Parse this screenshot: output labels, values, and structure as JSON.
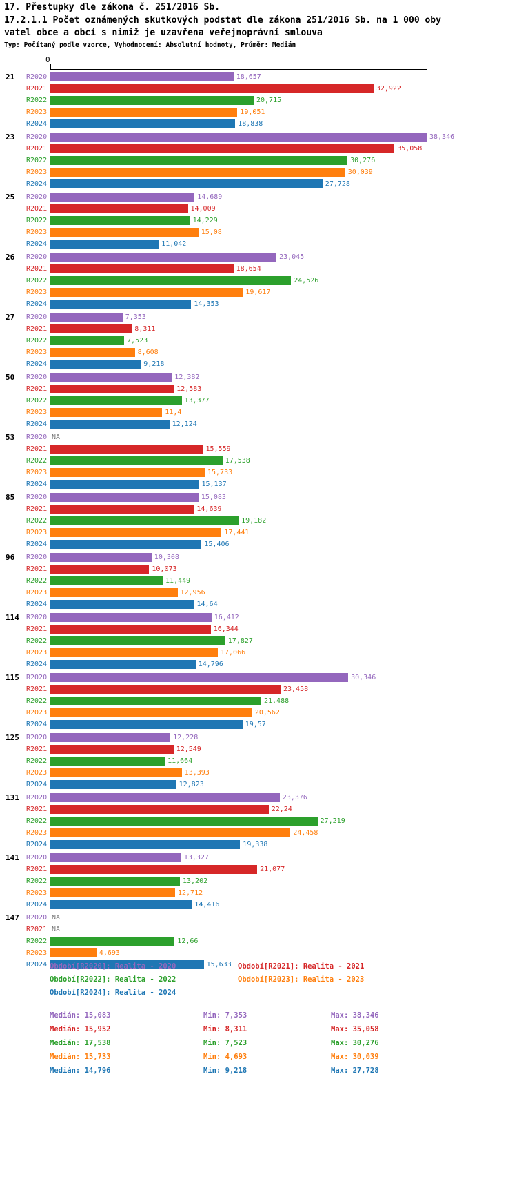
{
  "header": {
    "title": "17. Přestupky dle zákona č. 251/2016 Sb.",
    "subtitle_line1": "17.2.1.1 Počet oznámených skutkových podstat dle zákona 251/2016 Sb. na 1 000 oby",
    "subtitle_line2": "vatel obce a obcí s nimiž je uzavřena veřejnoprávní smlouva",
    "meta": "Typ: Počítaný podle vzorce, Vyhodnocení: Absolutní hodnoty, Průměr: Medián"
  },
  "axis": {
    "zero_label": "0"
  },
  "series": [
    {
      "id": "R2020",
      "color": "#9467bd",
      "legend": "Období[R2020]: Realita - 2020",
      "median": 15.083,
      "stats": {
        "median": "Medián: 15,083",
        "min": "Min: 7,353",
        "max": "Max: 38,346"
      }
    },
    {
      "id": "R2021",
      "color": "#d62728",
      "legend": "Období[R2021]: Realita - 2021",
      "median": 15.952,
      "stats": {
        "median": "Medián: 15,952",
        "min": "Min: 8,311",
        "max": "Max: 35,058"
      }
    },
    {
      "id": "R2022",
      "color": "#2ca02c",
      "legend": "Období[R2022]: Realita - 2022",
      "median": 17.538,
      "stats": {
        "median": "Medián: 17,538",
        "min": "Min: 7,523",
        "max": "Max: 30,276"
      }
    },
    {
      "id": "R2023",
      "color": "#ff7f0e",
      "legend": "Období[R2023]: Realita - 2023",
      "median": 15.733,
      "stats": {
        "median": "Medián: 15,733",
        "min": "Min: 4,693",
        "max": "Max: 30,039"
      }
    },
    {
      "id": "R2024",
      "color": "#1f77b4",
      "legend": "Období[R2024]: Realita - 2024",
      "median": 14.796,
      "stats": {
        "median": "Medián: 14,796",
        "min": "Min: 9,218",
        "max": "Max: 27,728"
      }
    }
  ],
  "chart_data": {
    "type": "bar",
    "orientation": "horizontal",
    "value_axis": {
      "min": 0,
      "max": 38.346
    },
    "series_names": [
      "R2020",
      "R2021",
      "R2022",
      "R2023",
      "R2024"
    ],
    "groups": [
      {
        "label": "21",
        "rows": [
          {
            "series": "R2020",
            "value": 18.657,
            "display": "18,657"
          },
          {
            "series": "R2021",
            "value": 32.922,
            "display": "32,922"
          },
          {
            "series": "R2022",
            "value": 20.715,
            "display": "20,715"
          },
          {
            "series": "R2023",
            "value": 19.051,
            "display": "19,051"
          },
          {
            "series": "R2024",
            "value": 18.838,
            "display": "18,838"
          }
        ]
      },
      {
        "label": "23",
        "rows": [
          {
            "series": "R2020",
            "value": 38.346,
            "display": "38,346"
          },
          {
            "series": "R2021",
            "value": 35.058,
            "display": "35,058"
          },
          {
            "series": "R2022",
            "value": 30.276,
            "display": "30,276"
          },
          {
            "series": "R2023",
            "value": 30.039,
            "display": "30,039"
          },
          {
            "series": "R2024",
            "value": 27.728,
            "display": "27,728"
          }
        ]
      },
      {
        "label": "25",
        "rows": [
          {
            "series": "R2020",
            "value": 14.689,
            "display": "14,689"
          },
          {
            "series": "R2021",
            "value": 14.009,
            "display": "14,009"
          },
          {
            "series": "R2022",
            "value": 14.229,
            "display": "14,229"
          },
          {
            "series": "R2023",
            "value": 15.08,
            "display": "15,08"
          },
          {
            "series": "R2024",
            "value": 11.042,
            "display": "11,042"
          }
        ]
      },
      {
        "label": "26",
        "rows": [
          {
            "series": "R2020",
            "value": 23.045,
            "display": "23,045"
          },
          {
            "series": "R2021",
            "value": 18.654,
            "display": "18,654"
          },
          {
            "series": "R2022",
            "value": 24.526,
            "display": "24,526"
          },
          {
            "series": "R2023",
            "value": 19.617,
            "display": "19,617"
          },
          {
            "series": "R2024",
            "value": 14.353,
            "display": "14,353"
          }
        ]
      },
      {
        "label": "27",
        "rows": [
          {
            "series": "R2020",
            "value": 7.353,
            "display": "7,353"
          },
          {
            "series": "R2021",
            "value": 8.311,
            "display": "8,311"
          },
          {
            "series": "R2022",
            "value": 7.523,
            "display": "7,523"
          },
          {
            "series": "R2023",
            "value": 8.608,
            "display": "8,608"
          },
          {
            "series": "R2024",
            "value": 9.218,
            "display": "9,218"
          }
        ]
      },
      {
        "label": "50",
        "rows": [
          {
            "series": "R2020",
            "value": 12.382,
            "display": "12,382"
          },
          {
            "series": "R2021",
            "value": 12.583,
            "display": "12,583"
          },
          {
            "series": "R2022",
            "value": 13.377,
            "display": "13,377"
          },
          {
            "series": "R2023",
            "value": 11.4,
            "display": "11,4"
          },
          {
            "series": "R2024",
            "value": 12.124,
            "display": "12,124"
          }
        ]
      },
      {
        "label": "53",
        "rows": [
          {
            "series": "R2020",
            "value": null,
            "display": "NA"
          },
          {
            "series": "R2021",
            "value": 15.559,
            "display": "15,559"
          },
          {
            "series": "R2022",
            "value": 17.538,
            "display": "17,538"
          },
          {
            "series": "R2023",
            "value": 15.733,
            "display": "15,733"
          },
          {
            "series": "R2024",
            "value": 15.137,
            "display": "15,137"
          }
        ]
      },
      {
        "label": "85",
        "rows": [
          {
            "series": "R2020",
            "value": 15.083,
            "display": "15,083"
          },
          {
            "series": "R2021",
            "value": 14.639,
            "display": "14,639"
          },
          {
            "series": "R2022",
            "value": 19.182,
            "display": "19,182"
          },
          {
            "series": "R2023",
            "value": 17.441,
            "display": "17,441"
          },
          {
            "series": "R2024",
            "value": 15.406,
            "display": "15,406"
          }
        ]
      },
      {
        "label": "96",
        "rows": [
          {
            "series": "R2020",
            "value": 10.308,
            "display": "10,308"
          },
          {
            "series": "R2021",
            "value": 10.073,
            "display": "10,073"
          },
          {
            "series": "R2022",
            "value": 11.449,
            "display": "11,449"
          },
          {
            "series": "R2023",
            "value": 12.956,
            "display": "12,956"
          },
          {
            "series": "R2024",
            "value": 14.64,
            "display": "14,64"
          }
        ]
      },
      {
        "label": "114",
        "rows": [
          {
            "series": "R2020",
            "value": 16.412,
            "display": "16,412"
          },
          {
            "series": "R2021",
            "value": 16.344,
            "display": "16,344"
          },
          {
            "series": "R2022",
            "value": 17.827,
            "display": "17,827"
          },
          {
            "series": "R2023",
            "value": 17.066,
            "display": "17,066"
          },
          {
            "series": "R2024",
            "value": 14.796,
            "display": "14,796"
          }
        ]
      },
      {
        "label": "115",
        "rows": [
          {
            "series": "R2020",
            "value": 30.346,
            "display": "30,346"
          },
          {
            "series": "R2021",
            "value": 23.458,
            "display": "23,458"
          },
          {
            "series": "R2022",
            "value": 21.488,
            "display": "21,488"
          },
          {
            "series": "R2023",
            "value": 20.562,
            "display": "20,562"
          },
          {
            "series": "R2024",
            "value": 19.57,
            "display": "19,57"
          }
        ]
      },
      {
        "label": "125",
        "rows": [
          {
            "series": "R2020",
            "value": 12.228,
            "display": "12,228"
          },
          {
            "series": "R2021",
            "value": 12.549,
            "display": "12,549"
          },
          {
            "series": "R2022",
            "value": 11.664,
            "display": "11,664"
          },
          {
            "series": "R2023",
            "value": 13.393,
            "display": "13,393"
          },
          {
            "series": "R2024",
            "value": 12.823,
            "display": "12,823"
          }
        ]
      },
      {
        "label": "131",
        "rows": [
          {
            "series": "R2020",
            "value": 23.376,
            "display": "23,376"
          },
          {
            "series": "R2021",
            "value": 22.24,
            "display": "22,24"
          },
          {
            "series": "R2022",
            "value": 27.219,
            "display": "27,219"
          },
          {
            "series": "R2023",
            "value": 24.458,
            "display": "24,458"
          },
          {
            "series": "R2024",
            "value": 19.338,
            "display": "19,338"
          }
        ]
      },
      {
        "label": "141",
        "rows": [
          {
            "series": "R2020",
            "value": 13.327,
            "display": "13,327"
          },
          {
            "series": "R2021",
            "value": 21.077,
            "display": "21,077"
          },
          {
            "series": "R2022",
            "value": 13.202,
            "display": "13,202"
          },
          {
            "series": "R2023",
            "value": 12.712,
            "display": "12,712"
          },
          {
            "series": "R2024",
            "value": 14.416,
            "display": "14,416"
          }
        ]
      },
      {
        "label": "147",
        "rows": [
          {
            "series": "R2020",
            "value": null,
            "display": "NA"
          },
          {
            "series": "R2021",
            "value": null,
            "display": "NA"
          },
          {
            "series": "R2022",
            "value": 12.66,
            "display": "12,66"
          },
          {
            "series": "R2023",
            "value": 4.693,
            "display": "4,693"
          },
          {
            "series": "R2024",
            "value": 15.633,
            "display": "15,633"
          }
        ]
      }
    ]
  }
}
